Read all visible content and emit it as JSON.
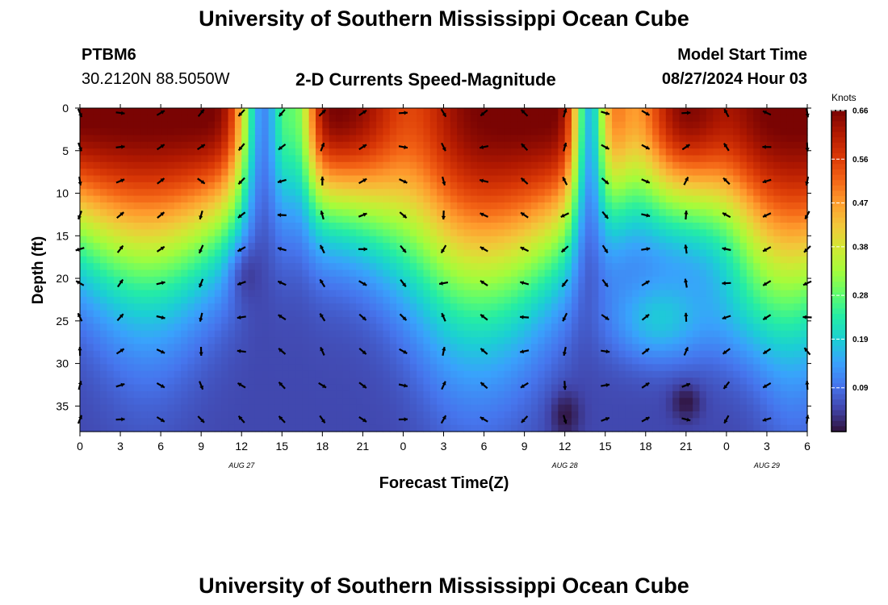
{
  "header": {
    "title": "University of Southern Mississippi Ocean Cube",
    "station_id": "PTBM6",
    "coordinates": "30.2120N  88.5050W",
    "subtitle": "2-D Currents Speed-Magnitude",
    "model_start_label": "Model Start Time",
    "model_start_value": "08/27/2024 Hour 03"
  },
  "footer": {
    "title": "University of Southern Mississippi Ocean Cube"
  },
  "colors": {
    "scale": [
      "#30123b",
      "#4145ab",
      "#4675ed",
      "#39a2fc",
      "#1bcfd4",
      "#24eca6",
      "#61fc6c",
      "#a4fc3b",
      "#d1e834",
      "#f3c63a",
      "#fe9b2d",
      "#f36315",
      "#d93806",
      "#b11901",
      "#7a0403"
    ]
  },
  "chart_data": {
    "type": "heatmap",
    "xlabel": "Forecast Time(Z)",
    "ylabel": "Depth (ft)",
    "x_tick_labels": [
      "0",
      "3",
      "6",
      "9",
      "12",
      "15",
      "18",
      "21",
      "0",
      "3",
      "6",
      "9",
      "12",
      "15",
      "18",
      "21",
      "0",
      "3",
      "6"
    ],
    "date_labels": [
      {
        "label": "AUG 27",
        "hours": 12
      },
      {
        "label": "AUG 28",
        "hours": 36
      },
      {
        "label": "AUG 29",
        "hours": 51
      }
    ],
    "xlim_hours": [
      0,
      54
    ],
    "y_ticks": [
      0,
      5,
      10,
      15,
      20,
      25,
      30,
      35
    ],
    "ylim": [
      0,
      38
    ],
    "colorbar": {
      "label": "Knots",
      "range": [
        0.0,
        0.66
      ],
      "tick_labels": [
        "0.66",
        "0.56",
        "0.47",
        "0.38",
        "0.28",
        "0.19",
        "0.09"
      ],
      "tick_values": [
        0.66,
        0.56,
        0.47,
        0.38,
        0.28,
        0.19,
        0.09
      ]
    },
    "series": [
      {
        "name": "speed",
        "x_hours": [
          0,
          3,
          6,
          9,
          12,
          15,
          18,
          21,
          24,
          27,
          30,
          33,
          36,
          39,
          42,
          45,
          48,
          51,
          54
        ],
        "depths": [
          0,
          4,
          8,
          12,
          16,
          20,
          24,
          28,
          32,
          36
        ]
      }
    ],
    "arrow_times_hours": [
      0,
      3,
      6,
      9,
      12,
      15,
      18,
      21,
      24,
      27,
      30,
      33,
      36,
      39,
      42,
      45,
      48,
      51,
      54
    ],
    "arrow_depths_ft": [
      0,
      4,
      8,
      12,
      16,
      20,
      24,
      28,
      32,
      36
    ]
  }
}
